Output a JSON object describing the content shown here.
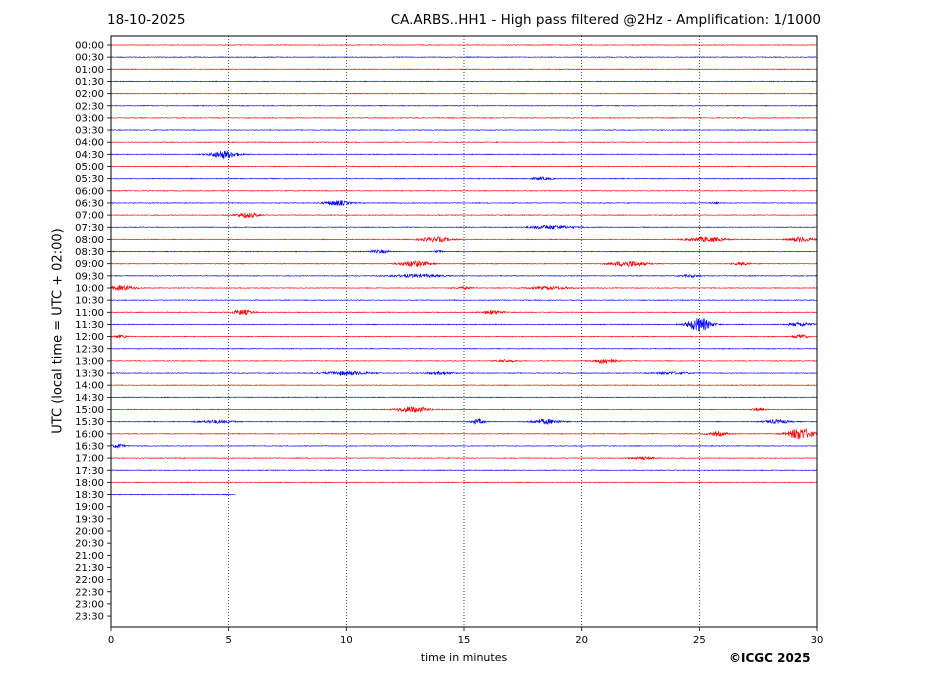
{
  "header": {
    "date": "18-10-2025",
    "title": "CA.ARBS..HH1 - High pass filtered @2Hz - Amplification: 1/1000"
  },
  "footer": {
    "credit": "©ICGC 2025"
  },
  "chart_data": {
    "type": "line",
    "title": "CA.ARBS..HH1 - High pass filtered @2Hz - Amplification: 1/1000",
    "xlabel": "time in minutes",
    "ylabel": "UTC (local time = UTC + 02:00)",
    "xlim": [
      0,
      30
    ],
    "xticks": [
      0,
      5,
      10,
      15,
      20,
      25,
      30
    ],
    "rows": [
      "00:00",
      "00:30",
      "01:00",
      "01:30",
      "02:00",
      "02:30",
      "03:00",
      "03:30",
      "04:00",
      "04:30",
      "05:00",
      "05:30",
      "06:00",
      "06:30",
      "07:00",
      "07:30",
      "08:00",
      "08:30",
      "09:00",
      "09:30",
      "10:00",
      "10:30",
      "11:00",
      "11:30",
      "12:00",
      "12:30",
      "13:00",
      "13:30",
      "14:00",
      "14:30",
      "15:00",
      "15:30",
      "16:00",
      "16:30",
      "17:00",
      "17:30",
      "18:00",
      "18:30",
      "19:00",
      "19:30",
      "20:00",
      "20:30",
      "21:00",
      "21:30",
      "22:00",
      "22:30",
      "23:00",
      "23:30"
    ],
    "trace_colors": [
      "#ff0000",
      "#0000ff"
    ],
    "last_row_end_minute": 5.3,
    "grid": "vertical dotted at each x tick",
    "events": [
      {
        "row": "04:30",
        "minute": 4.8,
        "amp": 4,
        "width": 1.6
      },
      {
        "row": "05:30",
        "minute": 18.3,
        "amp": 1.5,
        "width": 1.2
      },
      {
        "row": "06:30",
        "minute": 9.6,
        "amp": 2.5,
        "width": 1.5
      },
      {
        "row": "06:30",
        "minute": 25.7,
        "amp": 1,
        "width": 0.5
      },
      {
        "row": "07:00",
        "minute": 5.8,
        "amp": 2.5,
        "width": 1.4
      },
      {
        "row": "07:30",
        "minute": 18.7,
        "amp": 2,
        "width": 2.5
      },
      {
        "row": "08:00",
        "minute": 13.8,
        "amp": 2.5,
        "width": 1.8
      },
      {
        "row": "08:00",
        "minute": 25.3,
        "amp": 2.5,
        "width": 2.2
      },
      {
        "row": "08:00",
        "minute": 29.3,
        "amp": 2.5,
        "width": 1.4
      },
      {
        "row": "08:30",
        "minute": 11.4,
        "amp": 1.5,
        "width": 1.2
      },
      {
        "row": "08:30",
        "minute": 13.9,
        "amp": 1,
        "width": 0.6
      },
      {
        "row": "09:00",
        "minute": 12.9,
        "amp": 3,
        "width": 1.8
      },
      {
        "row": "09:00",
        "minute": 22.0,
        "amp": 3,
        "width": 2.0
      },
      {
        "row": "09:00",
        "minute": 26.8,
        "amp": 1.5,
        "width": 1.0
      },
      {
        "row": "09:30",
        "minute": 13.0,
        "amp": 1.5,
        "width": 3.0
      },
      {
        "row": "09:30",
        "minute": 24.6,
        "amp": 1.2,
        "width": 1.2
      },
      {
        "row": "10:00",
        "minute": 0.5,
        "amp": 2.5,
        "width": 1.5
      },
      {
        "row": "10:00",
        "minute": 15.0,
        "amp": 1.2,
        "width": 1.0
      },
      {
        "row": "10:00",
        "minute": 18.6,
        "amp": 1.5,
        "width": 2.5
      },
      {
        "row": "11:00",
        "minute": 5.6,
        "amp": 2.5,
        "width": 1.3
      },
      {
        "row": "11:00",
        "minute": 16.2,
        "amp": 2,
        "width": 1.2
      },
      {
        "row": "11:30",
        "minute": 25.0,
        "amp": 7,
        "width": 1.4
      },
      {
        "row": "11:30",
        "minute": 29.3,
        "amp": 2,
        "width": 1.4
      },
      {
        "row": "12:00",
        "minute": 0.4,
        "amp": 1.5,
        "width": 0.8
      },
      {
        "row": "12:00",
        "minute": 29.3,
        "amp": 2,
        "width": 0.8
      },
      {
        "row": "13:00",
        "minute": 21.0,
        "amp": 3,
        "width": 1.2
      },
      {
        "row": "13:00",
        "minute": 16.8,
        "amp": 1.2,
        "width": 1.2
      },
      {
        "row": "13:30",
        "minute": 10.0,
        "amp": 2,
        "width": 2.5
      },
      {
        "row": "13:30",
        "minute": 14.0,
        "amp": 1.5,
        "width": 1.5
      },
      {
        "row": "13:30",
        "minute": 23.8,
        "amp": 1.2,
        "width": 2.0
      },
      {
        "row": "15:00",
        "minute": 12.8,
        "amp": 3,
        "width": 1.8
      },
      {
        "row": "15:00",
        "minute": 27.5,
        "amp": 1.5,
        "width": 0.8
      },
      {
        "row": "15:30",
        "minute": 4.5,
        "amp": 1.5,
        "width": 2.0
      },
      {
        "row": "15:30",
        "minute": 15.6,
        "amp": 2.5,
        "width": 0.8
      },
      {
        "row": "15:30",
        "minute": 18.5,
        "amp": 2.5,
        "width": 1.6
      },
      {
        "row": "15:30",
        "minute": 28.3,
        "amp": 2,
        "width": 1.4
      },
      {
        "row": "16:00",
        "minute": 25.8,
        "amp": 2,
        "width": 1.2
      },
      {
        "row": "16:00",
        "minute": 29.3,
        "amp": 6,
        "width": 1.5
      },
      {
        "row": "16:30",
        "minute": 0.3,
        "amp": 2,
        "width": 0.8
      },
      {
        "row": "17:00",
        "minute": 22.6,
        "amp": 1.5,
        "width": 1.5
      }
    ]
  }
}
